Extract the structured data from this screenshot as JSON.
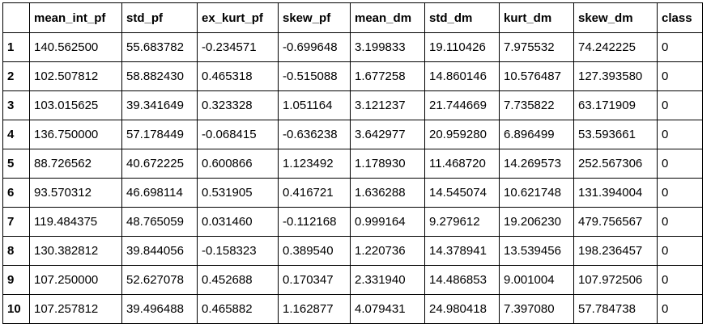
{
  "table": {
    "index_header": "",
    "columns": [
      "mean_int_pf",
      "std_pf",
      "ex_kurt_pf",
      "skew_pf",
      "mean_dm",
      "std_dm",
      "kurt_dm",
      "skew_dm",
      "class"
    ],
    "rows": [
      {
        "index": "1",
        "cells": [
          "140.562500",
          "55.683782",
          "-0.234571",
          "-0.699648",
          "3.199833",
          "19.110426",
          "7.975532",
          "74.242225",
          "0"
        ]
      },
      {
        "index": "2",
        "cells": [
          "102.507812",
          "58.882430",
          "0.465318",
          "-0.515088",
          "1.677258",
          "14.860146",
          "10.576487",
          "127.393580",
          "0"
        ]
      },
      {
        "index": "3",
        "cells": [
          "103.015625",
          "39.341649",
          "0.323328",
          "1.051164",
          "3.121237",
          "21.744669",
          "7.735822",
          "63.171909",
          "0"
        ]
      },
      {
        "index": "4",
        "cells": [
          "136.750000",
          "57.178449",
          "-0.068415",
          "-0.636238",
          "3.642977",
          "20.959280",
          "6.896499",
          "53.593661",
          "0"
        ]
      },
      {
        "index": "5",
        "cells": [
          "88.726562",
          "40.672225",
          "0.600866",
          "1.123492",
          "1.178930",
          "11.468720",
          "14.269573",
          "252.567306",
          "0"
        ]
      },
      {
        "index": "6",
        "cells": [
          "93.570312",
          "46.698114",
          "0.531905",
          "0.416721",
          "1.636288",
          "14.545074",
          "10.621748",
          "131.394004",
          "0"
        ]
      },
      {
        "index": "7",
        "cells": [
          "119.484375",
          "48.765059",
          "0.031460",
          "-0.112168",
          "0.999164",
          "9.279612",
          "19.206230",
          "479.756567",
          "0"
        ]
      },
      {
        "index": "8",
        "cells": [
          "130.382812",
          "39.844056",
          "-0.158323",
          "0.389540",
          "1.220736",
          "14.378941",
          "13.539456",
          "198.236457",
          "0"
        ]
      },
      {
        "index": "9",
        "cells": [
          "107.250000",
          "52.627078",
          "0.452688",
          "0.170347",
          "2.331940",
          "14.486853",
          "9.001004",
          "107.972506",
          "0"
        ]
      },
      {
        "index": "10",
        "cells": [
          "107.257812",
          "39.496488",
          "0.465882",
          "1.162877",
          "4.079431",
          "24.980418",
          "7.397080",
          "57.784738",
          "0"
        ]
      }
    ]
  }
}
